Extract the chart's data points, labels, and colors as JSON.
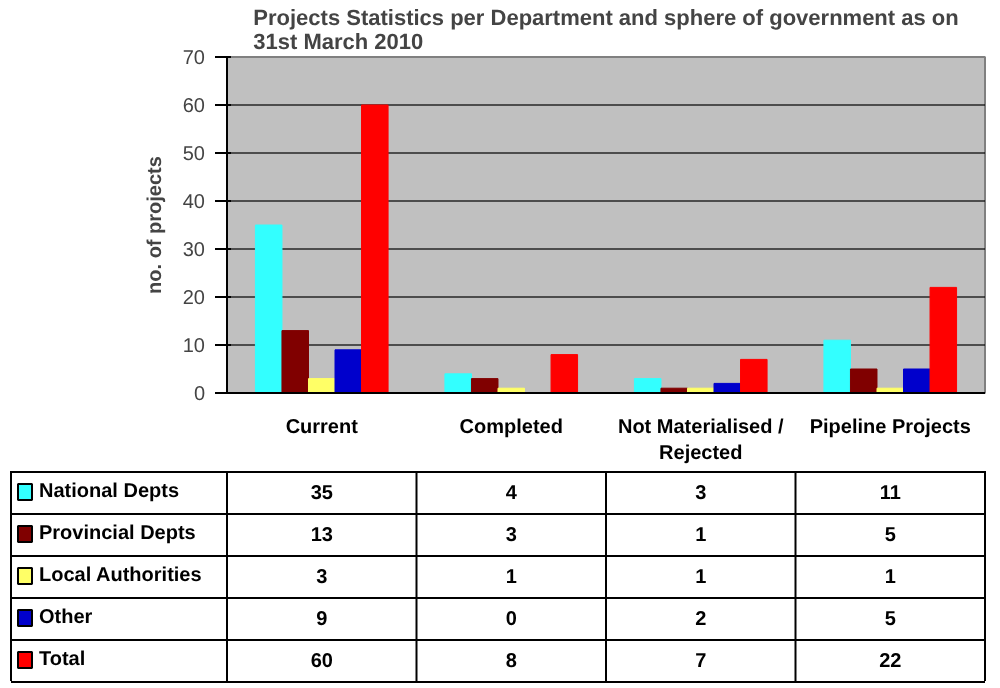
{
  "chart_data": {
    "type": "bar",
    "title": "Projects Statistics per Department and sphere of government as on 31st March 2010",
    "ylabel": "no. of projects",
    "categories": [
      "Current",
      "Completed",
      "Not Materialised / Rejected",
      "Pipeline Projects"
    ],
    "series": [
      {
        "name": "National Depts",
        "color": "#33ffff",
        "values": [
          35,
          4,
          3,
          11
        ]
      },
      {
        "name": "Provincial Depts",
        "color": "#800000",
        "values": [
          13,
          3,
          1,
          5
        ]
      },
      {
        "name": "Local Authorities",
        "color": "#ffff66",
        "values": [
          3,
          1,
          1,
          1
        ]
      },
      {
        "name": "Other",
        "color": "#0000cc",
        "values": [
          9,
          0,
          2,
          5
        ]
      },
      {
        "name": "Total",
        "color": "#ff0000",
        "values": [
          60,
          8,
          7,
          22
        ]
      }
    ],
    "ylim": [
      0,
      70
    ],
    "yticks": [
      0,
      10,
      20,
      30,
      40,
      50,
      60,
      70
    ],
    "grid": "y",
    "legend": "bottom left",
    "data_labels": true
  }
}
